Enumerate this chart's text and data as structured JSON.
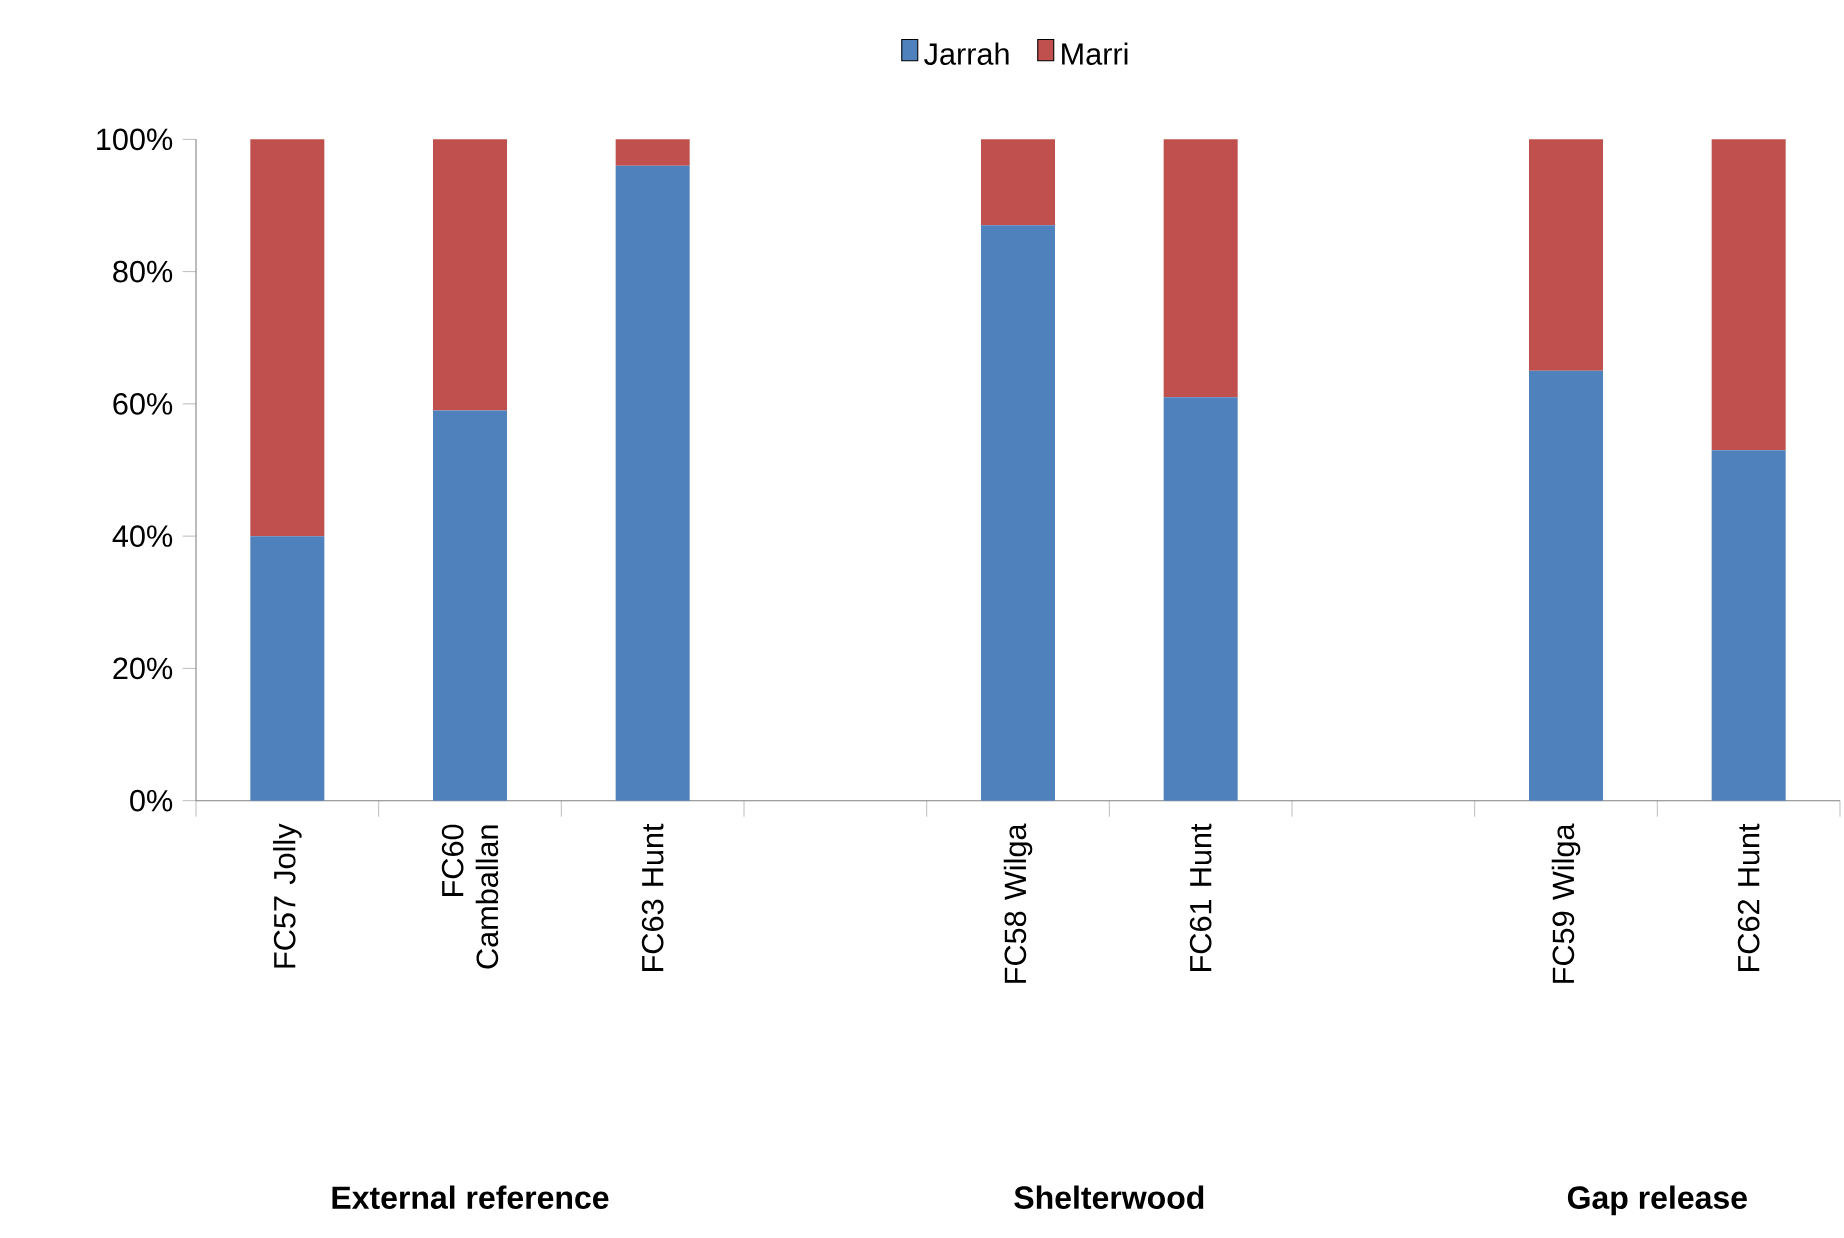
{
  "chart_data": {
    "type": "bar",
    "stacked": true,
    "categories": [
      "FC57 Jolly",
      "FC60 Camballan",
      "FC63 Hunt",
      null,
      "FC58 Wilga",
      "FC61 Hunt",
      null,
      "FC59 Wilga",
      "FC62 Hunt"
    ],
    "series": [
      {
        "name": "Jarrah",
        "color": "#4f81bd",
        "values": [
          40,
          59,
          96,
          null,
          87,
          61,
          null,
          65,
          53
        ]
      },
      {
        "name": "Marri",
        "color": "#c0504d",
        "values": [
          60,
          41,
          4,
          null,
          13,
          39,
          null,
          35,
          47
        ]
      }
    ],
    "ylim": [
      0,
      100
    ],
    "yticks": [
      {
        "value": 0,
        "label": "0%"
      },
      {
        "value": 20,
        "label": "20%"
      },
      {
        "value": 40,
        "label": "40%"
      },
      {
        "value": 60,
        "label": "60%"
      },
      {
        "value": 80,
        "label": "80%"
      },
      {
        "value": 100,
        "label": "100%"
      }
    ],
    "legend": "top",
    "grid": false,
    "annotations": [
      "External reference",
      "Shelterwood",
      "Gap release"
    ]
  }
}
